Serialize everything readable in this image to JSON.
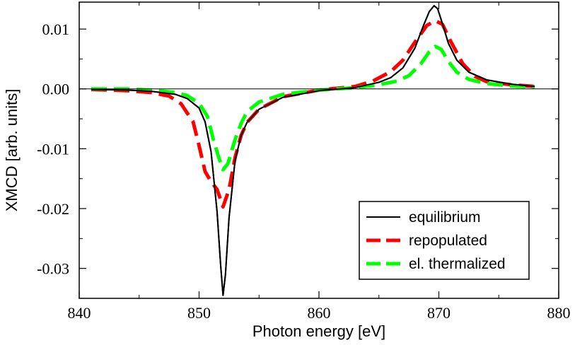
{
  "chart_data": {
    "type": "line",
    "xlabel": "Photon energy [eV]",
    "ylabel": "XMCD [arb. units]",
    "xlim": [
      840,
      880
    ],
    "ylim": [
      -0.035,
      0.0145
    ],
    "xticks": [
      840,
      850,
      860,
      870,
      880
    ],
    "xtick_labels": [
      "840",
      "850",
      "860",
      "870",
      "880"
    ],
    "yticks": [
      0.01,
      0.0,
      -0.01,
      -0.02,
      -0.03
    ],
    "ytick_labels": [
      "0.01",
      "0.00",
      "-0.01",
      "-0.02",
      "-0.03"
    ],
    "zero_line": true,
    "legend_position": "bottom-right",
    "series": [
      {
        "name": "equilibrium",
        "color": "#000000",
        "style": "solid",
        "x": [
          841,
          844,
          846,
          848,
          849,
          850,
          850.5,
          851,
          851.5,
          851.8,
          852,
          852.2,
          852.5,
          853,
          853.5,
          854,
          855,
          857,
          860,
          863,
          865,
          866,
          867,
          868,
          868.7,
          869.2,
          869.6,
          869.9,
          870.3,
          870.8,
          871.5,
          872.5,
          874,
          876,
          878
        ],
        "values": [
          -0.0001,
          -0.0002,
          -0.0004,
          -0.0009,
          -0.0016,
          -0.0032,
          -0.0055,
          -0.0105,
          -0.0205,
          -0.0295,
          -0.0345,
          -0.031,
          -0.0215,
          -0.012,
          -0.0078,
          -0.0056,
          -0.0034,
          -0.0014,
          -0.0003,
          0.0002,
          0.0011,
          0.0019,
          0.0035,
          0.0068,
          0.0105,
          0.0129,
          0.0139,
          0.0134,
          0.0109,
          0.0076,
          0.0048,
          0.0028,
          0.0015,
          0.0008,
          0.0004
        ]
      },
      {
        "name": "repopulated",
        "color": "#ff0000",
        "style": "dash",
        "x": [
          841,
          844,
          846,
          847.5,
          848.5,
          849.5,
          850,
          850.5,
          851,
          851.5,
          852,
          852.5,
          853,
          853.5,
          854,
          855,
          857,
          860,
          863,
          864.5,
          866,
          867,
          868,
          869,
          869.7,
          870.3,
          871,
          872,
          873,
          874,
          876,
          878
        ],
        "values": [
          -0.0001,
          -0.0003,
          -0.0006,
          -0.0012,
          -0.0025,
          -0.0055,
          -0.0095,
          -0.0138,
          -0.0155,
          -0.0168,
          -0.0197,
          -0.0168,
          -0.0115,
          -0.0078,
          -0.0056,
          -0.0034,
          -0.0013,
          -0.0002,
          0.0004,
          0.0013,
          0.0029,
          0.0048,
          0.0078,
          0.0106,
          0.0114,
          0.0108,
          0.0079,
          0.0042,
          0.0021,
          0.0012,
          0.0007,
          0.0004
        ]
      },
      {
        "name": "el. thermalized",
        "color": "#00ff00",
        "style": "dash",
        "x": [
          841,
          844,
          846,
          848,
          849,
          850,
          850.7,
          851.2,
          851.6,
          852,
          852.4,
          853,
          853.5,
          854,
          855,
          857,
          860,
          863,
          865,
          866.5,
          867.5,
          868.5,
          869.2,
          869.7,
          870.2,
          870.8,
          871.5,
          872.5,
          874,
          876,
          878
        ],
        "values": [
          0.0,
          0.0,
          -0.0002,
          -0.0006,
          -0.0011,
          -0.0024,
          -0.0046,
          -0.0085,
          -0.0112,
          -0.0135,
          -0.0125,
          -0.0085,
          -0.0058,
          -0.0038,
          -0.0022,
          -0.0009,
          -0.0002,
          0.0002,
          0.0007,
          0.0013,
          0.0022,
          0.0042,
          0.0062,
          0.0071,
          0.0066,
          0.0046,
          0.0028,
          0.0016,
          0.0009,
          0.0005,
          0.0003
        ]
      }
    ]
  }
}
